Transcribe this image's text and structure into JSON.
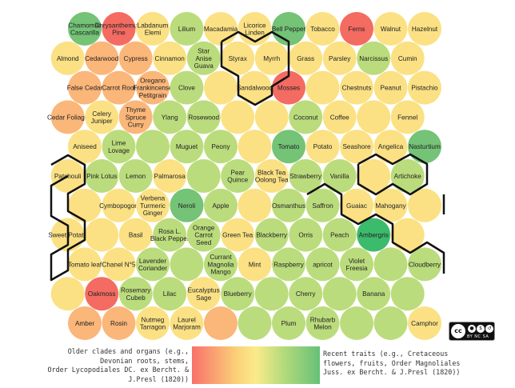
{
  "colors": {
    "R": "#f46b62",
    "O": "#fbb679",
    "Y": "#fbe184",
    "L": "#bbdc7c",
    "G": "#74c377",
    "D": "#3dbb6c",
    "border": "#111111"
  },
  "grid": {
    "rows": [
      [
        {
          "t": "Chamomile Cascarilla",
          "c": "G"
        },
        {
          "t": "Chrysanthemum Pine",
          "c": "R"
        },
        {
          "t": "Labdanum Elemi",
          "c": "Y"
        },
        {
          "t": "Lilium",
          "c": "L"
        },
        {
          "t": "Macadamia",
          "c": "Y"
        },
        {
          "t": "Licorice Linden",
          "c": "Y"
        },
        {
          "t": "Bell Pepper",
          "c": "G"
        },
        {
          "t": "Tobacco",
          "c": "Y"
        },
        {
          "t": "Ferns",
          "c": "R"
        },
        {
          "t": "Walnut",
          "c": "Y"
        },
        {
          "t": "Hazelnut",
          "c": "Y"
        }
      ],
      [
        {
          "t": "Almond",
          "c": "Y"
        },
        {
          "t": "Cedarwood",
          "c": "O"
        },
        {
          "t": "Cypress",
          "c": "O"
        },
        {
          "t": "Cinnamon",
          "c": "Y"
        },
        {
          "t": "Star Anise Guava",
          "c": "L"
        },
        {
          "t": "Styrax",
          "c": "Y"
        },
        {
          "t": "Myrrh",
          "c": "Y"
        },
        {
          "t": "Grass",
          "c": "Y"
        },
        {
          "t": "Parsley",
          "c": "Y"
        },
        {
          "t": "Narcissus",
          "c": "L"
        },
        {
          "t": "Cumin",
          "c": "Y"
        }
      ],
      [
        {
          "t": "False Cedar",
          "c": "O"
        },
        {
          "t": "Carrot Root",
          "c": "O"
        },
        {
          "t": "Oregano Frankincense Petitgrain",
          "c": "O"
        },
        {
          "t": "Clove",
          "c": "L"
        },
        {
          "t": "",
          "c": "Y"
        },
        {
          "t": "Sandalwood",
          "c": "Y"
        },
        {
          "t": "Mosses",
          "c": "R"
        },
        {
          "t": "",
          "c": "Y"
        },
        {
          "t": "Chestnuts",
          "c": "Y"
        },
        {
          "t": "Peanut",
          "c": "Y"
        },
        {
          "t": "Pistachio",
          "c": "Y"
        }
      ],
      [
        {
          "t": "Cedar Foliage",
          "c": "O"
        },
        {
          "t": "Celery Juniper",
          "c": "Y"
        },
        {
          "t": "Thyme Spruce Curry",
          "c": "O"
        },
        {
          "t": "Ylang",
          "c": "L"
        },
        {
          "t": "Rosewood",
          "c": "L"
        },
        {
          "t": "",
          "c": "Y"
        },
        {
          "t": "",
          "c": "Y"
        },
        {
          "t": "Coconut",
          "c": "L"
        },
        {
          "t": "Coffee",
          "c": "Y"
        },
        {
          "t": "",
          "c": "Y"
        },
        {
          "t": "Fennel",
          "c": "Y"
        }
      ],
      [
        {
          "t": "Aniseed",
          "c": "Y"
        },
        {
          "t": "Lime Lovage",
          "c": "L"
        },
        {
          "t": "",
          "c": "L"
        },
        {
          "t": "Muguet",
          "c": "L"
        },
        {
          "t": "Peony",
          "c": "L"
        },
        {
          "t": "",
          "c": "Y"
        },
        {
          "t": "Tomato",
          "c": "G"
        },
        {
          "t": "Potato",
          "c": "Y"
        },
        {
          "t": "Seashore",
          "c": "Y"
        },
        {
          "t": "Angelica",
          "c": "Y"
        },
        {
          "t": "Nasturtium",
          "c": "G"
        }
      ],
      [
        {
          "t": "Patchouli",
          "c": "Y"
        },
        {
          "t": "Pink Lotus",
          "c": "L"
        },
        {
          "t": "Lemon",
          "c": "L"
        },
        {
          "t": "Palmarosa",
          "c": "Y"
        },
        {
          "t": "",
          "c": "L"
        },
        {
          "t": "Pear Quince",
          "c": "L"
        },
        {
          "t": "Black Tea Oolong Tea",
          "c": "Y"
        },
        {
          "t": "Strawberry",
          "c": "L"
        },
        {
          "t": "Vanilla",
          "c": "L"
        },
        {
          "t": "",
          "c": "Y"
        },
        {
          "t": "Artichoke",
          "c": "L"
        }
      ],
      [
        {
          "t": "",
          "c": "Y"
        },
        {
          "t": "Cymbopogon",
          "c": "Y"
        },
        {
          "t": "Verbena Turmeric Ginger",
          "c": "Y"
        },
        {
          "t": "Neroli",
          "c": "G"
        },
        {
          "t": "Apple",
          "c": "L"
        },
        {
          "t": "",
          "c": "Y"
        },
        {
          "t": "Osmanthus",
          "c": "L"
        },
        {
          "t": "Saffron",
          "c": "L"
        },
        {
          "t": "Guaiac",
          "c": "Y"
        },
        {
          "t": "Mahogany",
          "c": "Y"
        },
        {
          "t": "",
          "c": "Y"
        }
      ],
      [
        {
          "t": "Sweet Potato",
          "c": "Y"
        },
        {
          "t": "",
          "c": "Y"
        },
        {
          "t": "Basil",
          "c": "Y"
        },
        {
          "t": "Rosa L. Black Pepper",
          "c": "L"
        },
        {
          "t": "Orange Carrot Seed",
          "c": "L"
        },
        {
          "t": "Green Tea",
          "c": "Y"
        },
        {
          "t": "Blackberry",
          "c": "L"
        },
        {
          "t": "Orris",
          "c": "L"
        },
        {
          "t": "Peach",
          "c": "L"
        },
        {
          "t": "Ambergris",
          "c": "D"
        },
        {
          "t": "",
          "c": "Y"
        }
      ],
      [
        {
          "t": "Tomato leaf",
          "c": "Y"
        },
        {
          "t": "Chanel N°5",
          "c": "Y"
        },
        {
          "t": "Lavender Coriander",
          "c": "L"
        },
        {
          "t": "",
          "c": "L"
        },
        {
          "t": "Currant Magnolia Mango",
          "c": "L"
        },
        {
          "t": "Mint",
          "c": "Y"
        },
        {
          "t": "Raspberry",
          "c": "L"
        },
        {
          "t": "apricot",
          "c": "L"
        },
        {
          "t": "Violet Freesia",
          "c": "L"
        },
        {
          "t": "",
          "c": "L"
        },
        {
          "t": "Cloudberry",
          "c": "L"
        }
      ],
      [
        {
          "t": "",
          "c": "Y"
        },
        {
          "t": "Oakmoss",
          "c": "R"
        },
        {
          "t": "Rosemary Cubeb",
          "c": "L"
        },
        {
          "t": "Lilac",
          "c": "L"
        },
        {
          "t": "Eucalyptus Sage",
          "c": "Y"
        },
        {
          "t": "Blueberry",
          "c": "L"
        },
        {
          "t": "",
          "c": "L"
        },
        {
          "t": "Cherry",
          "c": "L"
        },
        {
          "t": "",
          "c": "L"
        },
        {
          "t": "Banana",
          "c": "L"
        },
        {
          "t": "",
          "c": "L"
        }
      ],
      [
        {
          "t": "Amber",
          "c": "O"
        },
        {
          "t": "Rosin",
          "c": "O"
        },
        {
          "t": "Nutmeg Tarragon",
          "c": "Y"
        },
        {
          "t": "Laurel Marjoram",
          "c": "Y"
        },
        {
          "t": "",
          "c": "O"
        },
        {
          "t": "",
          "c": "L"
        },
        {
          "t": "Plum",
          "c": "L"
        },
        {
          "t": "Rhubarb Melon",
          "c": "L"
        },
        {
          "t": "",
          "c": "L"
        },
        {
          "t": "",
          "c": "L"
        },
        {
          "t": "Camphor",
          "c": "Y"
        }
      ]
    ]
  },
  "legend": {
    "left": "Older clades and organs (e.g.,\nDevonian roots, stems,\nOrder Lycopodiales DC. ex Bercht. &\nJ.Presl (1820))",
    "right": "Recent traits (e.g., Cretaceous\nflowers, fruits, Order Magnoliales\nJuss. ex Bercht. & J.Presl (1820))"
  },
  "license": {
    "badge": "cc",
    "labels": "BY  NC  SA"
  }
}
